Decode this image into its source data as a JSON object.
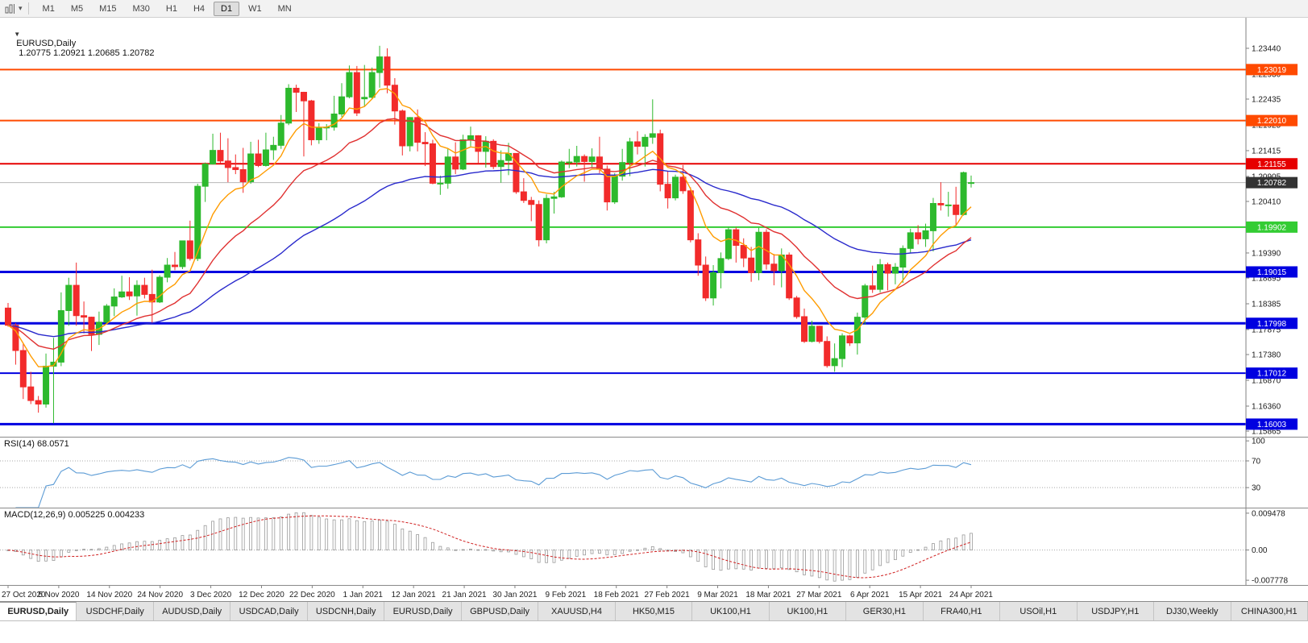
{
  "icons": {
    "collapse": "▼",
    "caret": "▾",
    "chart_menu": "chart-menu-icon"
  },
  "toolbar": {
    "timeframes": [
      "M1",
      "M5",
      "M15",
      "M30",
      "H1",
      "H4",
      "D1",
      "W1",
      "MN"
    ],
    "active": "D1"
  },
  "chart_data": {
    "type": "candlestick",
    "symbol": "EURUSD",
    "period": "Daily",
    "title": "EURUSD,Daily",
    "ohlc_display": "1.20775 1.20921 1.20685 1.20782",
    "current_price": "1.20782",
    "ylim": [
      1.15754,
      1.24045
    ],
    "colors": {
      "up": "#2DB92D",
      "down": "#F22B2B",
      "axis_text": "#1a1a1a",
      "axis_line": "#808080",
      "current_line": "#b8b8b8",
      "current_badge": "#333333"
    },
    "y_ticks": [
      "1.23440",
      "1.22930",
      "1.22435",
      "1.21925",
      "1.21415",
      "1.20905",
      "1.20410",
      "1.19390",
      "1.18895",
      "1.18385",
      "1.17875",
      "1.17380",
      "1.16870",
      "1.16360",
      "1.15865"
    ],
    "x_labels": [
      "27 Oct 2020",
      "5 Nov 2020",
      "14 Nov 2020",
      "24 Nov 2020",
      "3 Dec 2020",
      "12 Dec 2020",
      "22 Dec 2020",
      "1 Jan 2021",
      "12 Jan 2021",
      "21 Jan 2021",
      "30 Jan 2021",
      "9 Feb 2021",
      "18 Feb 2021",
      "27 Feb 2021",
      "9 Mar 2021",
      "18 Mar 2021",
      "27 Mar 2021",
      "6 Apr 2021",
      "15 Apr 2021",
      "24 Apr 2021"
    ],
    "hlines": [
      {
        "label": "1.23019",
        "price": 1.23019,
        "color": "#FF4A00",
        "width": 2
      },
      {
        "label": "1.22010",
        "price": 1.2201,
        "color": "#FF4A00",
        "width": 2
      },
      {
        "label": "1.21155",
        "price": 1.21155,
        "color": "#E60000",
        "width": 2
      },
      {
        "label": "1.19902",
        "price": 1.19902,
        "color": "#33CC33",
        "width": 2
      },
      {
        "label": "1.19015",
        "price": 1.19015,
        "color": "#0000E0",
        "width": 3
      },
      {
        "label": "1.17998",
        "price": 1.17998,
        "color": "#0000E0",
        "width": 3
      },
      {
        "label": "1.17012",
        "price": 1.17012,
        "color": "#0000E0",
        "width": 2
      },
      {
        "label": "1.16003",
        "price": 1.16003,
        "color": "#0000E0",
        "width": 3
      }
    ],
    "moving_averages": [
      {
        "period": 8,
        "type": "ema",
        "color": "#FF9C00"
      },
      {
        "period": 20,
        "type": "ema",
        "color": "#E03131"
      },
      {
        "period": 50,
        "type": "ema",
        "color": "#2929CC"
      }
    ],
    "indicators": {
      "rsi": {
        "label": "RSI(14) 68.0571",
        "period": 14,
        "color": "#5B9BD5",
        "levels": [
          70,
          30
        ],
        "y_ticks": [
          "100",
          "70",
          "30"
        ],
        "ylim": [
          0,
          105
        ]
      },
      "macd": {
        "label": "MACD(12,26,9) 0.005225 0.004233",
        "fast": 12,
        "slow": 26,
        "signal": 9,
        "hist_color": "#9a9a9a",
        "signal_color": "#D02020",
        "y_ticks": [
          "0.009478",
          "0.00",
          "-0.007778"
        ],
        "ylim": [
          -0.009,
          0.0107
        ]
      }
    },
    "ohlc": [
      [
        1.183,
        1.184,
        1.1793,
        1.1796
      ],
      [
        1.1796,
        1.18,
        1.1718,
        1.1746
      ],
      [
        1.1746,
        1.1759,
        1.165,
        1.1674
      ],
      [
        1.1674,
        1.1704,
        1.164,
        1.1647
      ],
      [
        1.1647,
        1.1656,
        1.1623,
        1.164
      ],
      [
        1.164,
        1.174,
        1.1633,
        1.1715
      ],
      [
        1.1715,
        1.1771,
        1.1602,
        1.1723
      ],
      [
        1.1723,
        1.1861,
        1.1715,
        1.1825
      ],
      [
        1.1825,
        1.189,
        1.1795,
        1.1875
      ],
      [
        1.1875,
        1.192,
        1.1795,
        1.1815
      ],
      [
        1.1815,
        1.1843,
        1.178,
        1.1812
      ],
      [
        1.1812,
        1.1813,
        1.1745,
        1.1778
      ],
      [
        1.1778,
        1.1823,
        1.1757,
        1.1802
      ],
      [
        1.1802,
        1.1838,
        1.1799,
        1.1834
      ],
      [
        1.1834,
        1.1869,
        1.1814,
        1.1852
      ],
      [
        1.1852,
        1.1894,
        1.185,
        1.1862
      ],
      [
        1.1862,
        1.1891,
        1.1846,
        1.1854
      ],
      [
        1.1854,
        1.1885,
        1.1815,
        1.1875
      ],
      [
        1.1875,
        1.189,
        1.1849,
        1.1857
      ],
      [
        1.1857,
        1.1906,
        1.18,
        1.1842
      ],
      [
        1.1842,
        1.1895,
        1.184,
        1.1891
      ],
      [
        1.1891,
        1.1929,
        1.1881,
        1.1915
      ],
      [
        1.1915,
        1.1941,
        1.1905,
        1.1912
      ],
      [
        1.1912,
        1.1963,
        1.1907,
        1.1963
      ],
      [
        1.1963,
        1.2003,
        1.1924,
        1.1928
      ],
      [
        1.1928,
        1.2076,
        1.1923,
        1.2071
      ],
      [
        1.2071,
        1.2118,
        1.204,
        1.2115
      ],
      [
        1.2115,
        1.2175,
        1.2114,
        1.2142
      ],
      [
        1.2142,
        1.2177,
        1.2117,
        1.2121
      ],
      [
        1.2121,
        1.2166,
        1.2079,
        1.2108
      ],
      [
        1.2108,
        1.2134,
        1.2095,
        1.2104
      ],
      [
        1.2104,
        1.2147,
        1.2058,
        1.208
      ],
      [
        1.208,
        1.2159,
        1.2076,
        1.2135
      ],
      [
        1.2135,
        1.2163,
        1.2109,
        1.2112
      ],
      [
        1.2112,
        1.2177,
        1.211,
        1.2143
      ],
      [
        1.2143,
        1.2169,
        1.2123,
        1.2152
      ],
      [
        1.2152,
        1.2212,
        1.2145,
        1.2196
      ],
      [
        1.2196,
        1.2273,
        1.2192,
        1.2265
      ],
      [
        1.2265,
        1.2272,
        1.2218,
        1.2257
      ],
      [
        1.2257,
        1.2258,
        1.213,
        1.224
      ],
      [
        1.224,
        1.2242,
        1.2152,
        1.2163
      ],
      [
        1.2163,
        1.2196,
        1.2155,
        1.2187
      ],
      [
        1.2187,
        1.2194,
        1.2162,
        1.2188
      ],
      [
        1.2188,
        1.225,
        1.2181,
        1.2214
      ],
      [
        1.2214,
        1.2275,
        1.2208,
        1.2248
      ],
      [
        1.2248,
        1.231,
        1.2245,
        1.2296
      ],
      [
        1.2296,
        1.2309,
        1.221,
        1.2216
      ],
      [
        1.2244,
        1.2311,
        1.2228,
        1.2247
      ],
      [
        1.2247,
        1.2306,
        1.2244,
        1.2296
      ],
      [
        1.2296,
        1.2349,
        1.2266,
        1.2327
      ],
      [
        1.2327,
        1.2344,
        1.2255,
        1.2271
      ],
      [
        1.2271,
        1.2285,
        1.2193,
        1.222
      ],
      [
        1.222,
        1.2223,
        1.2132,
        1.2151
      ],
      [
        1.2151,
        1.2208,
        1.214,
        1.2207
      ],
      [
        1.2207,
        1.2223,
        1.214,
        1.2158
      ],
      [
        1.2158,
        1.2178,
        1.2111,
        1.2155
      ],
      [
        1.2155,
        1.2163,
        1.2075,
        1.2077
      ],
      [
        1.2077,
        1.2092,
        1.2054,
        1.2077
      ],
      [
        1.2077,
        1.2145,
        1.2066,
        1.2129
      ],
      [
        1.2129,
        1.2158,
        1.2095,
        1.2105
      ],
      [
        1.2105,
        1.2173,
        1.2103,
        1.2163
      ],
      [
        1.2163,
        1.2189,
        1.215,
        1.2171
      ],
      [
        1.2171,
        1.2172,
        1.2116,
        1.214
      ],
      [
        1.214,
        1.217,
        1.2108,
        1.216
      ],
      [
        1.216,
        1.2164,
        1.2105,
        1.211
      ],
      [
        1.211,
        1.2142,
        1.2078,
        1.2122
      ],
      [
        1.2122,
        1.2157,
        1.2093,
        1.2136
      ],
      [
        1.2136,
        1.2136,
        1.2056,
        1.206
      ],
      [
        1.206,
        1.2087,
        1.2038,
        1.2043
      ],
      [
        1.2043,
        1.205,
        1.2002,
        1.2035
      ],
      [
        1.2035,
        1.2043,
        1.1952,
        1.1965
      ],
      [
        1.1965,
        1.2055,
        1.1958,
        1.2047
      ],
      [
        1.2047,
        1.206,
        1.2017,
        1.205
      ],
      [
        1.205,
        1.2122,
        1.2048,
        1.2119
      ],
      [
        1.2119,
        1.2145,
        1.2107,
        1.2119
      ],
      [
        1.2119,
        1.2151,
        1.211,
        1.213
      ],
      [
        1.213,
        1.2134,
        1.208,
        1.212
      ],
      [
        1.212,
        1.2146,
        1.2109,
        1.2129
      ],
      [
        1.2129,
        1.2169,
        1.2097,
        1.2105
      ],
      [
        1.2105,
        1.2112,
        1.2023,
        1.204
      ],
      [
        1.204,
        1.2097,
        1.2036,
        1.2091
      ],
      [
        1.2091,
        1.2145,
        1.2082,
        1.2118
      ],
      [
        1.2118,
        1.2167,
        1.2091,
        1.2159
      ],
      [
        1.2159,
        1.218,
        1.2134,
        1.215
      ],
      [
        1.215,
        1.2174,
        1.211,
        1.2168
      ],
      [
        1.2168,
        1.2243,
        1.2155,
        1.2175
      ],
      [
        1.2175,
        1.2183,
        1.2061,
        1.2075
      ],
      [
        1.2075,
        1.2101,
        1.2027,
        1.2048
      ],
      [
        1.2048,
        1.2094,
        1.2043,
        1.2089
      ],
      [
        1.2089,
        1.2113,
        1.2056,
        1.2062
      ],
      [
        1.2062,
        1.2069,
        1.196,
        1.1965
      ],
      [
        1.1965,
        1.1978,
        1.1894,
        1.1915
      ],
      [
        1.1915,
        1.1932,
        1.1844,
        1.185
      ],
      [
        1.185,
        1.1915,
        1.1835,
        1.19
      ],
      [
        1.19,
        1.194,
        1.1869,
        1.1928
      ],
      [
        1.1928,
        1.199,
        1.1925,
        1.1985
      ],
      [
        1.1985,
        1.199,
        1.192,
        1.1954
      ],
      [
        1.1954,
        1.1968,
        1.1911,
        1.1929
      ],
      [
        1.1929,
        1.1951,
        1.1882,
        1.19
      ],
      [
        1.19,
        1.1989,
        1.1885,
        1.198
      ],
      [
        1.198,
        1.1986,
        1.1906,
        1.1917
      ],
      [
        1.1917,
        1.1937,
        1.1875,
        1.1904
      ],
      [
        1.1904,
        1.1948,
        1.1871,
        1.1935
      ],
      [
        1.1935,
        1.194,
        1.1846,
        1.185
      ],
      [
        1.185,
        1.1854,
        1.1809,
        1.1813
      ],
      [
        1.1813,
        1.1829,
        1.1761,
        1.1764
      ],
      [
        1.1764,
        1.1805,
        1.1762,
        1.1794
      ],
      [
        1.1794,
        1.1795,
        1.176,
        1.1764
      ],
      [
        1.1764,
        1.1774,
        1.1712,
        1.1716
      ],
      [
        1.1716,
        1.176,
        1.1704,
        1.173
      ],
      [
        1.173,
        1.178,
        1.1713,
        1.1775
      ],
      [
        1.1775,
        1.1777,
        1.1755,
        1.1761
      ],
      [
        1.1761,
        1.1821,
        1.1738,
        1.1812
      ],
      [
        1.1812,
        1.1878,
        1.1797,
        1.1874
      ],
      [
        1.1874,
        1.1914,
        1.186,
        1.1867
      ],
      [
        1.1867,
        1.1927,
        1.1861,
        1.1916
      ],
      [
        1.1916,
        1.192,
        1.1865,
        1.1899
      ],
      [
        1.1899,
        1.1919,
        1.1877,
        1.1911
      ],
      [
        1.1911,
        1.1954,
        1.188,
        1.1948
      ],
      [
        1.1948,
        1.1987,
        1.1938,
        1.1979
      ],
      [
        1.1979,
        1.1994,
        1.1956,
        1.1967
      ],
      [
        1.1967,
        1.1997,
        1.1951,
        1.1983
      ],
      [
        1.1983,
        1.2048,
        1.1942,
        1.2037
      ],
      [
        1.2037,
        1.2079,
        1.2023,
        1.2034
      ],
      [
        1.2034,
        1.206,
        1.2011,
        1.2034
      ],
      [
        1.2034,
        1.207,
        1.1994,
        1.2015
      ],
      [
        1.2015,
        1.21,
        1.2013,
        1.2098
      ],
      [
        1.20775,
        1.20921,
        1.20685,
        1.20782
      ]
    ]
  },
  "tabs": {
    "active_index": 0,
    "items": [
      "EURUSD,Daily",
      "USDCHF,Daily",
      "AUDUSD,Daily",
      "USDCAD,Daily",
      "USDCNH,Daily",
      "EURUSD,Daily",
      "GBPUSD,Daily",
      "XAUUSD,H4",
      "HK50,M15",
      "UK100,H1",
      "UK100,H1",
      "GER30,H1",
      "FRA40,H1",
      "USOil,H1",
      "USDJPY,H1",
      "DJ30,Weekly",
      "CHINA300,H1"
    ]
  }
}
